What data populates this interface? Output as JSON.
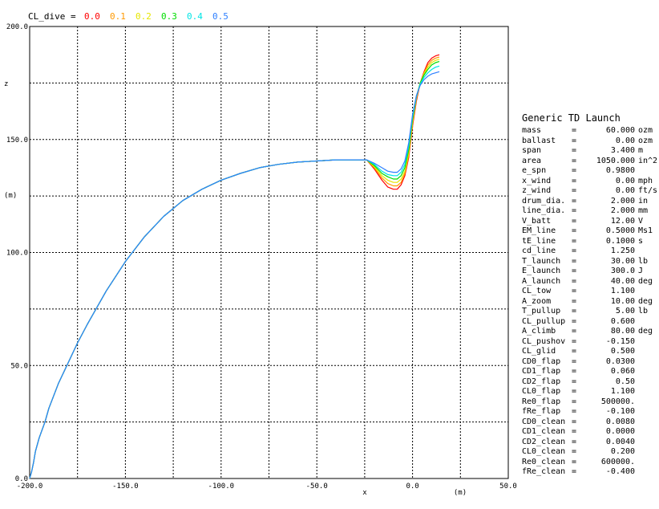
{
  "chart_data": {
    "type": "line",
    "xlim": [
      -200.0,
      50.0
    ],
    "ylim": [
      0.0,
      200.0
    ],
    "xticks": [
      -200,
      -150,
      -100,
      -50,
      0,
      50
    ],
    "yticks": [
      0,
      50,
      100,
      150,
      200
    ],
    "xtick_labels": [
      "-200.0",
      "-150.0",
      "-100.0",
      "-50.0",
      "0.0",
      "50.0"
    ],
    "ytick_labels": [
      "0.0",
      "50.0",
      "100.0",
      "150.0",
      "200.0"
    ],
    "grid": true,
    "xlabel": "x",
    "xunit": "(m)",
    "ylabel": "z",
    "yunit": "(m)",
    "legend_title": "CL_dive =",
    "legend_placement": "top-left",
    "shared": {
      "x": [
        -200,
        -199,
        -198,
        -197,
        -195,
        -192,
        -190,
        -185,
        -180,
        -175,
        -170,
        -160,
        -150,
        -140,
        -130,
        -120,
        -110,
        -100,
        -90,
        -80,
        -70,
        -60,
        -50,
        -40,
        -30,
        -24
      ],
      "z": [
        0,
        3,
        7,
        12,
        18,
        25,
        31,
        42,
        51,
        60,
        68,
        83,
        96,
        107,
        116,
        123,
        128,
        132,
        135,
        137.5,
        139,
        140,
        140.5,
        141,
        141,
        141
      ]
    },
    "series": [
      {
        "name": "0.0",
        "color": "#ff0000",
        "x": [
          -24,
          -20,
          -16,
          -13,
          -10,
          -8,
          -6,
          -4,
          -2,
          0,
          2,
          4,
          6,
          8,
          10,
          12,
          14
        ],
        "z": [
          141,
          137,
          132,
          129,
          128,
          128,
          130,
          134,
          142,
          156,
          167,
          175,
          180,
          184,
          186,
          187,
          187.5
        ]
      },
      {
        "name": "0.1",
        "color": "#ff9900",
        "x": [
          -24,
          -20,
          -16,
          -13,
          -10,
          -8,
          -6,
          -4,
          -2,
          0,
          2,
          4,
          6,
          8,
          10,
          12,
          14
        ],
        "z": [
          141,
          137.5,
          133,
          130.5,
          129.5,
          129.5,
          131,
          135,
          143,
          157,
          168,
          175,
          179.5,
          183,
          185,
          186,
          186.5
        ]
      },
      {
        "name": "0.2",
        "color": "#e6e600",
        "x": [
          -24,
          -20,
          -16,
          -13,
          -10,
          -8,
          -6,
          -4,
          -2,
          0,
          2,
          4,
          6,
          8,
          10,
          12,
          14
        ],
        "z": [
          141,
          138,
          134,
          132,
          131,
          131,
          132.5,
          136,
          144,
          158,
          168.5,
          175,
          179,
          182,
          184,
          185,
          185.5
        ]
      },
      {
        "name": "0.3",
        "color": "#00dd00",
        "x": [
          -24,
          -20,
          -16,
          -13,
          -10,
          -8,
          -6,
          -4,
          -2,
          0,
          2,
          4,
          6,
          8,
          10,
          12,
          14
        ],
        "z": [
          141,
          138.5,
          135,
          133.5,
          132.5,
          132.5,
          134,
          137.5,
          145.5,
          159,
          169,
          175,
          178.5,
          181,
          183,
          184,
          184.5
        ]
      },
      {
        "name": "0.4",
        "color": "#00e5e5",
        "x": [
          -24,
          -20,
          -16,
          -13,
          -10,
          -8,
          -6,
          -4,
          -2,
          0,
          2,
          4,
          6,
          8,
          10,
          12,
          14
        ],
        "z": [
          141,
          139,
          136,
          134.5,
          134,
          134,
          135.5,
          139,
          147,
          160,
          169,
          174.5,
          177.5,
          179.5,
          181,
          182,
          182.5
        ]
      },
      {
        "name": "0.5",
        "color": "#2f80ff",
        "x": [
          -24,
          -20,
          -16,
          -13,
          -10,
          -8,
          -6,
          -4,
          -2,
          0,
          2,
          4,
          6,
          8,
          10,
          12,
          14
        ],
        "z": [
          141,
          139.5,
          137.5,
          136,
          135.5,
          135.5,
          137,
          140.5,
          148.5,
          161,
          169.5,
          174,
          176.5,
          178,
          179,
          179.5,
          180
        ]
      }
    ]
  },
  "panel": {
    "title": "Generic TD Launch",
    "params": [
      {
        "name": "mass",
        "eq": "=",
        "value": "60.000",
        "unit": "ozm"
      },
      {
        "name": "ballast",
        "eq": "=",
        "value": "0.00",
        "unit": "ozm"
      },
      {
        "name": "span",
        "eq": "=",
        "value": "3.400",
        "unit": "m"
      },
      {
        "name": "area",
        "eq": "=",
        "value": "1050.000",
        "unit": "in^2"
      },
      {
        "name": "e_spn",
        "eq": "=",
        "value": "0.9800",
        "unit": ""
      },
      {
        "name": "x_wind",
        "eq": "=",
        "value": "0.00",
        "unit": "mph"
      },
      {
        "name": "z_wind",
        "eq": "=",
        "value": "0.00",
        "unit": "ft/s"
      },
      {
        "name": "drum_dia.",
        "eq": "=",
        "value": "2.000",
        "unit": "in"
      },
      {
        "name": "line_dia.",
        "eq": "=",
        "value": "2.000",
        "unit": "mm"
      },
      {
        "name": "V_batt",
        "eq": "=",
        "value": "12.00",
        "unit": "V"
      },
      {
        "name": "EM_line",
        "eq": "=",
        "value": "0.5000",
        "unit": "Ms1"
      },
      {
        "name": "tE_line",
        "eq": "=",
        "value": "0.1000",
        "unit": "s"
      },
      {
        "name": "cd_line",
        "eq": "=",
        "value": "1.250",
        "unit": ""
      },
      {
        "name": "T_launch",
        "eq": "=",
        "value": "30.00",
        "unit": "lb"
      },
      {
        "name": "E_launch",
        "eq": "=",
        "value": "300.0",
        "unit": "J"
      },
      {
        "name": "A_launch",
        "eq": "=",
        "value": "40.00",
        "unit": "deg"
      },
      {
        "name": "CL_tow",
        "eq": "=",
        "value": "1.100",
        "unit": ""
      },
      {
        "name": "A_zoom",
        "eq": "=",
        "value": "10.00",
        "unit": "deg"
      },
      {
        "name": "T_pullup",
        "eq": "=",
        "value": "5.00",
        "unit": "lb"
      },
      {
        "name": "CL_pullup",
        "eq": "=",
        "value": "0.600",
        "unit": ""
      },
      {
        "name": "A_climb",
        "eq": "=",
        "value": "80.00",
        "unit": "deg"
      },
      {
        "name": "CL_pushov",
        "eq": "=",
        "value": "-0.150",
        "unit": ""
      },
      {
        "name": "CL_glid",
        "eq": "=",
        "value": "0.500",
        "unit": ""
      },
      {
        "name": "CD0_flap",
        "eq": "=",
        "value": "0.0300",
        "unit": ""
      },
      {
        "name": "CD1_flap",
        "eq": "=",
        "value": "0.060",
        "unit": ""
      },
      {
        "name": "CD2_flap",
        "eq": "=",
        "value": "0.50",
        "unit": ""
      },
      {
        "name": "CL0_flap",
        "eq": "=",
        "value": "1.100",
        "unit": ""
      },
      {
        "name": "Re0_flap",
        "eq": "=",
        "value": "500000.",
        "unit": ""
      },
      {
        "name": "fRe_flap",
        "eq": "=",
        "value": "-0.100",
        "unit": ""
      },
      {
        "name": "CD0_clean",
        "eq": "=",
        "value": "0.0080",
        "unit": ""
      },
      {
        "name": "CD1_clean",
        "eq": "=",
        "value": "0.0000",
        "unit": ""
      },
      {
        "name": "CD2_clean",
        "eq": "=",
        "value": "0.0040",
        "unit": ""
      },
      {
        "name": "CL0_clean",
        "eq": "=",
        "value": "0.200",
        "unit": ""
      },
      {
        "name": "Re0_clean",
        "eq": "=",
        "value": "600000.",
        "unit": ""
      },
      {
        "name": "fRe_clean",
        "eq": "=",
        "value": "-0.400",
        "unit": ""
      }
    ]
  }
}
